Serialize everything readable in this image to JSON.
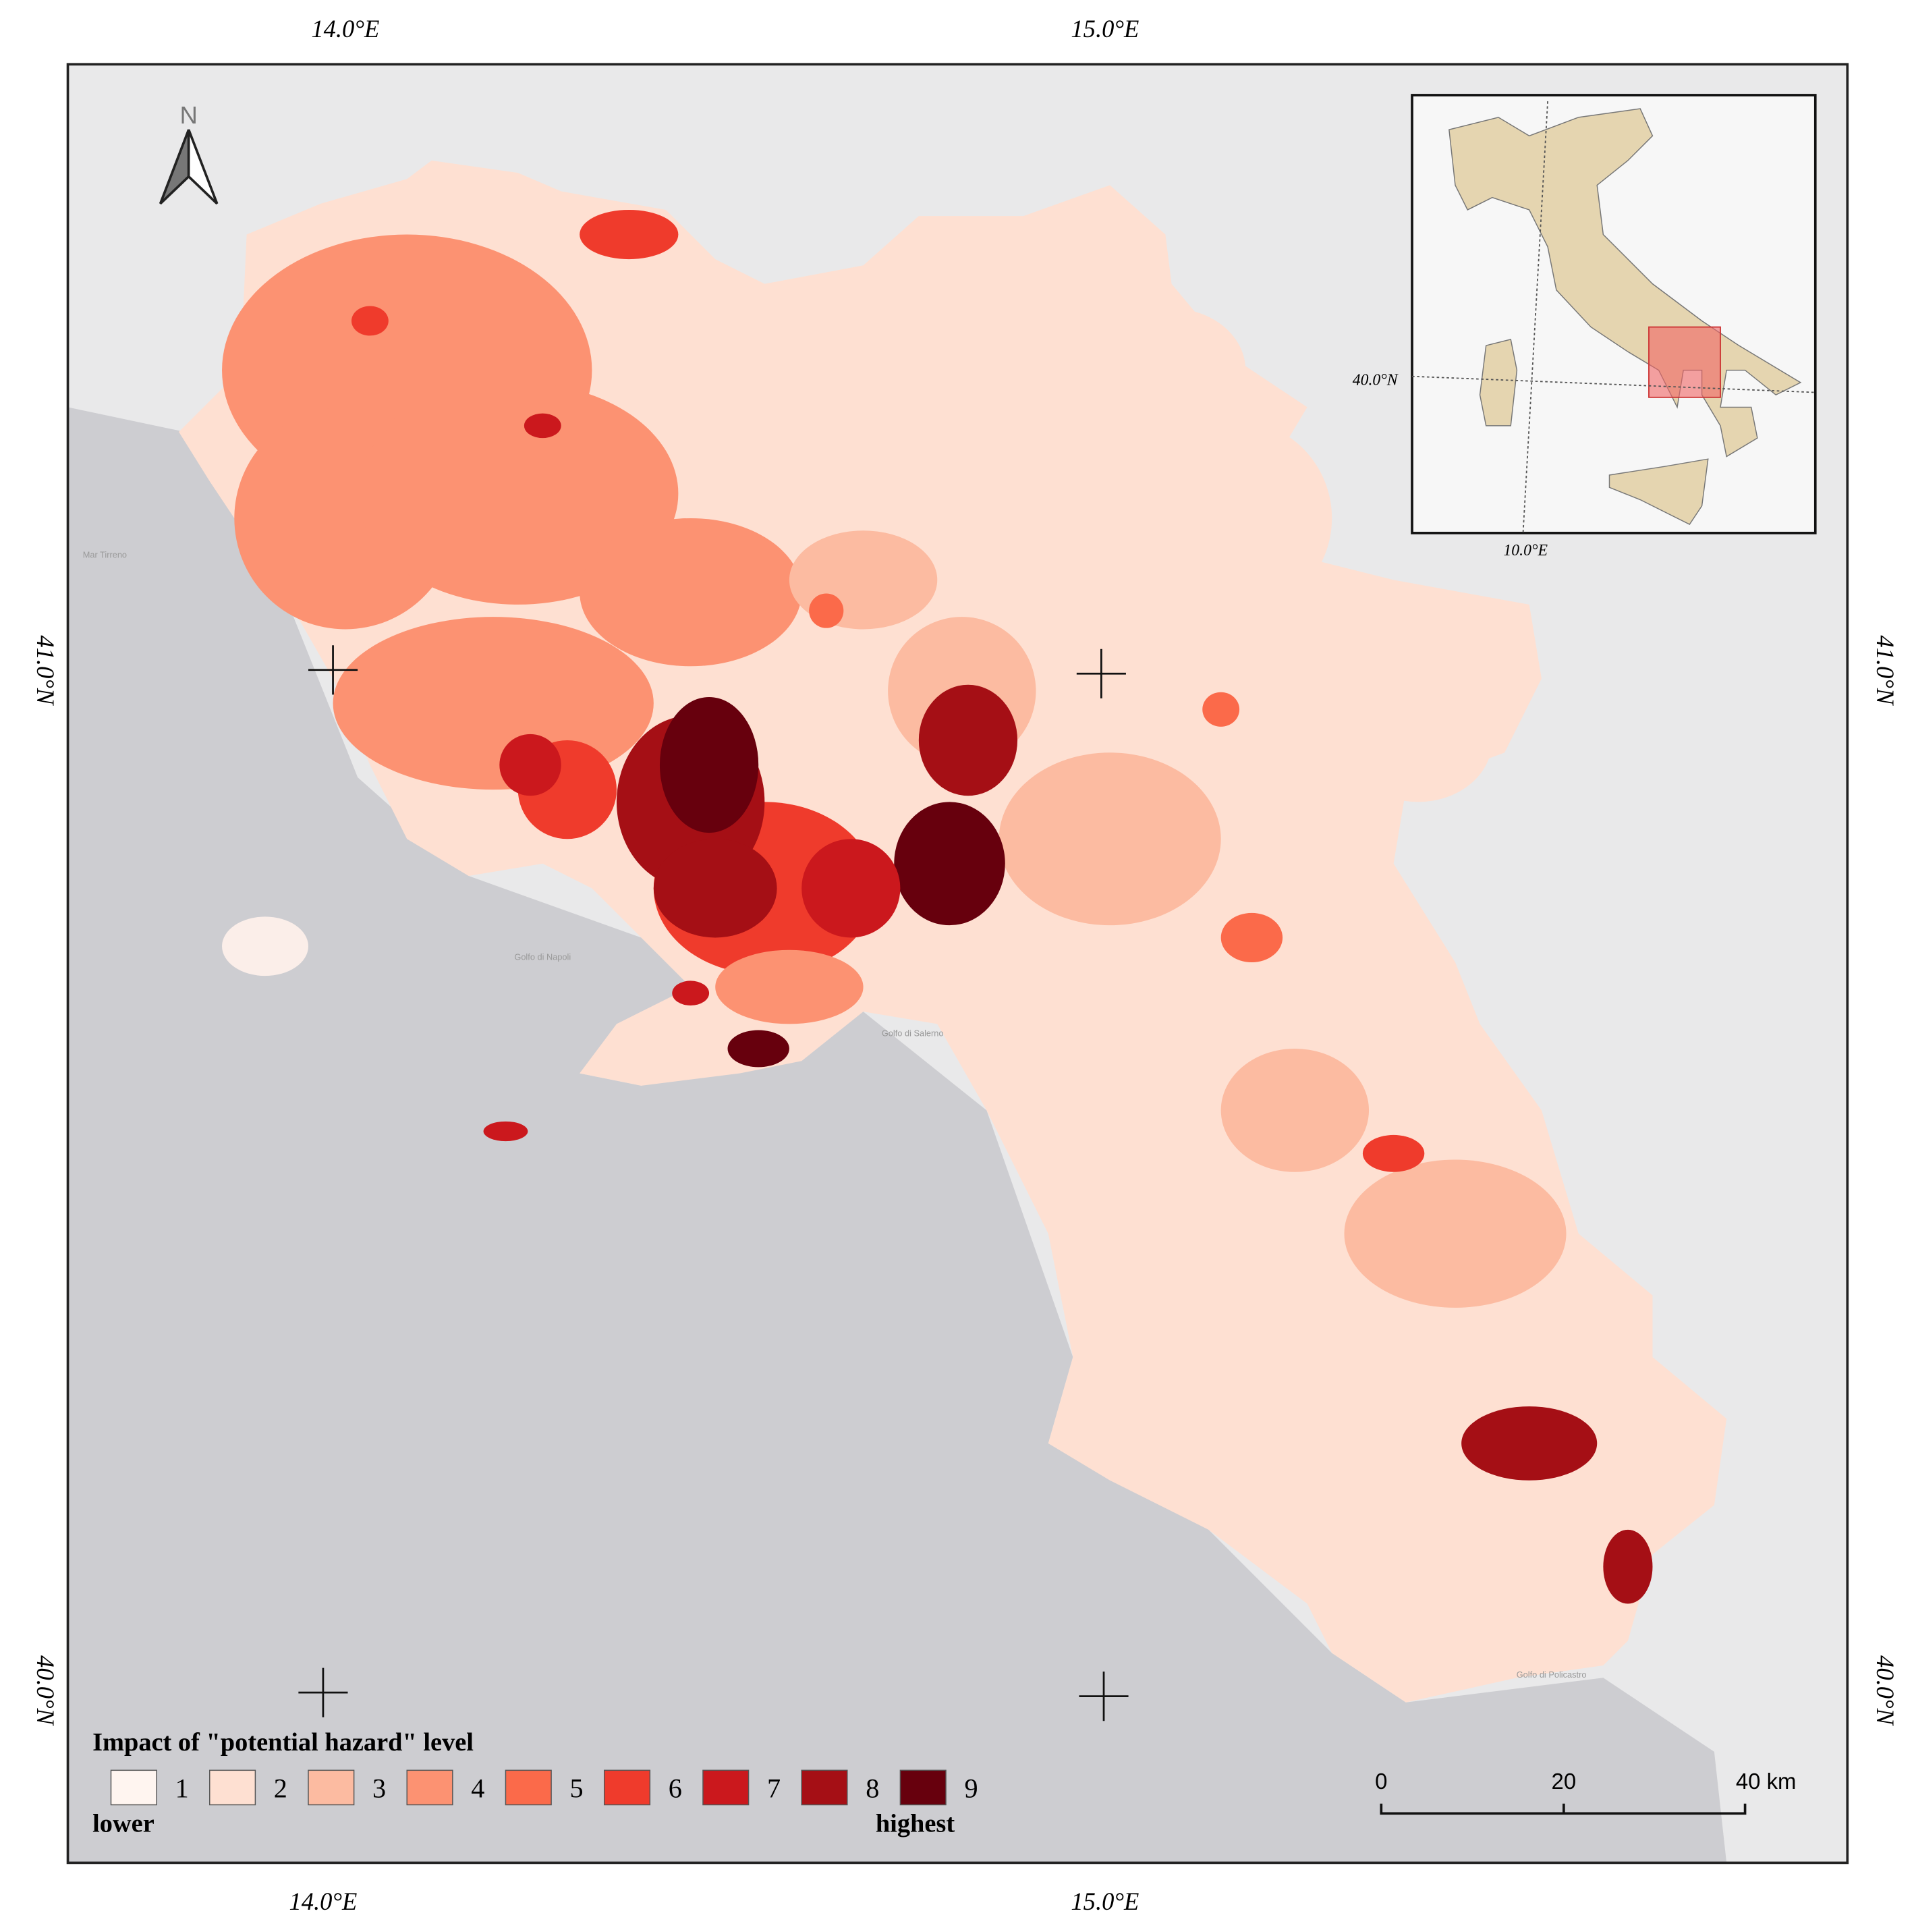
{
  "north_arrow": "N",
  "graticule": {
    "top": [
      "14.0°E",
      "15.0°E"
    ],
    "bottom": [
      "14.0°E",
      "15.0°E"
    ],
    "left": [
      "41.0°N",
      "40.0°N"
    ],
    "right": [
      "41.0°N",
      "40.0°N"
    ]
  },
  "sea_labels": [
    "Mar Tirreno",
    "Golfo di Napoli",
    "Golfo di Salerno",
    "Golfo di Policastro"
  ],
  "inset": {
    "lat_label": "40.0°N",
    "lon_label": "10.0°E"
  },
  "legend": {
    "title": "Impact of \"potential hazard\" level",
    "items": [
      {
        "label": "1",
        "color": "#fff5f0"
      },
      {
        "label": "2",
        "color": "#fee0d2"
      },
      {
        "label": "3",
        "color": "#fcbba1"
      },
      {
        "label": "4",
        "color": "#fc9272"
      },
      {
        "label": "5",
        "color": "#fb6a4a"
      },
      {
        "label": "6",
        "color": "#ef3b2c"
      },
      {
        "label": "7",
        "color": "#cb181d"
      },
      {
        "label": "8",
        "color": "#a50f15"
      },
      {
        "label": "9",
        "color": "#67000d"
      }
    ],
    "low": "lower",
    "high": "highest"
  },
  "scale_bar": [
    "0",
    "20",
    "40 km"
  ]
}
